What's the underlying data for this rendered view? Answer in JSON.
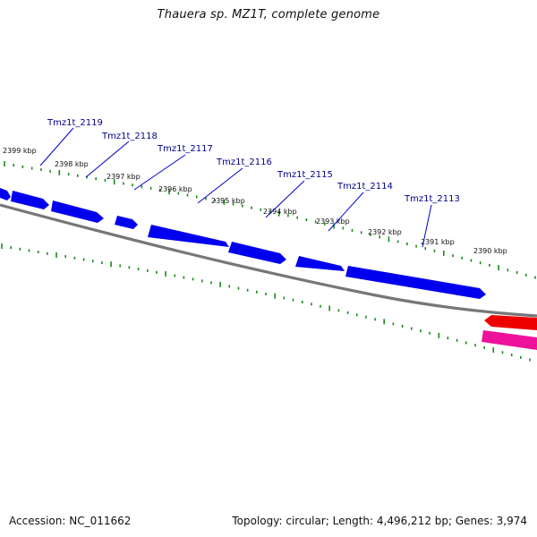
{
  "title": "Thauera sp. MZ1T, complete genome",
  "footer": {
    "accession": "Accession: NC_011662",
    "summary": "Topology: circular; Length: 4,496,212 bp; Genes: 3,974"
  },
  "colors": {
    "backbone": "#777777",
    "tick": "#1a8a1a",
    "forward_gene": "#0000ee",
    "reverse_gene_red": "#ee0000",
    "reverse_gene_pink": "#ee1199",
    "gene_label": "#00008b",
    "leader_line": "#0000cc"
  },
  "ruler_ticks": [
    "2399 kbp",
    "2398 kbp",
    "2397 kbp",
    "2396 kbp",
    "2395 kbp",
    "2394 kbp",
    "2393 kbp",
    "2392 kbp",
    "2391 kbp",
    "2390 kbp"
  ],
  "gene_labels": [
    "Tmz1t_2119",
    "Tmz1t_2118",
    "Tmz1t_2117",
    "Tmz1t_2116",
    "Tmz1t_2115",
    "Tmz1t_2114",
    "Tmz1t_2113"
  ]
}
